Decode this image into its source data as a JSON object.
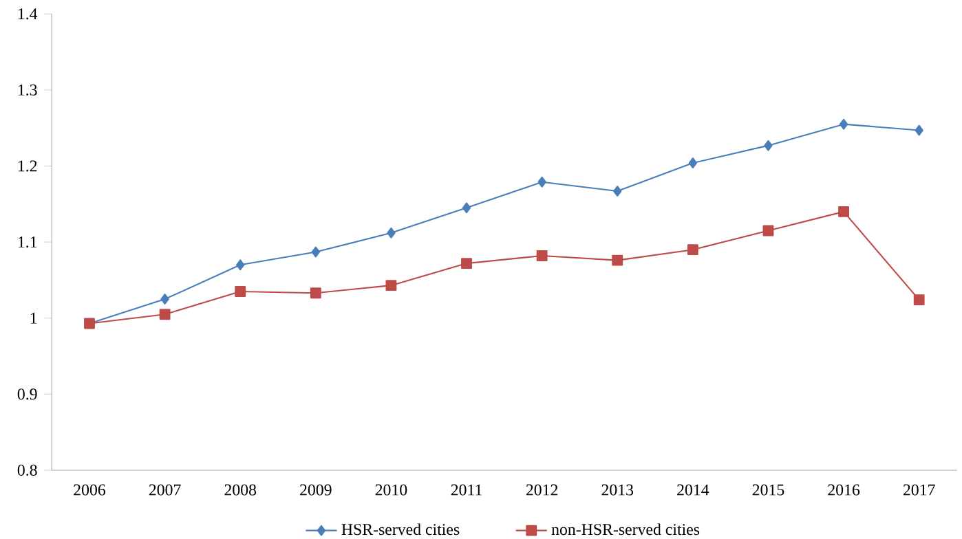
{
  "chart_data": {
    "type": "line",
    "categories": [
      "2006",
      "2007",
      "2008",
      "2009",
      "2010",
      "2011",
      "2012",
      "2013",
      "2014",
      "2015",
      "2016",
      "2017"
    ],
    "series": [
      {
        "name": "HSR-served cities",
        "color": "#4a7ebb",
        "marker": "diamond",
        "values": [
          0.993,
          1.025,
          1.07,
          1.087,
          1.112,
          1.145,
          1.179,
          1.167,
          1.204,
          1.227,
          1.255,
          1.247
        ]
      },
      {
        "name": "non-HSR-served cities",
        "color": "#be4b48",
        "marker": "square",
        "values": [
          0.993,
          1.005,
          1.035,
          1.033,
          1.043,
          1.072,
          1.082,
          1.076,
          1.09,
          1.115,
          1.14,
          1.024
        ]
      }
    ],
    "ylim": [
      0.8,
      1.4
    ],
    "yticks": [
      0.8,
      0.9,
      1,
      1.1,
      1.2,
      1.3,
      1.4
    ],
    "grid": false,
    "legend": "bottom",
    "line_style": "solid"
  }
}
